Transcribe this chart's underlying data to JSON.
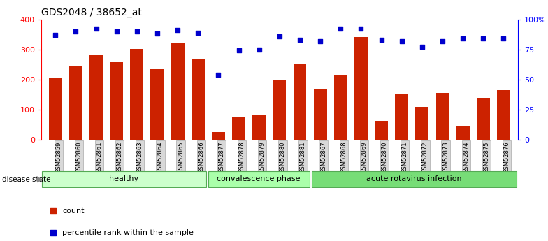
{
  "title": "GDS2048 / 38652_at",
  "samples": [
    "GSM52859",
    "GSM52860",
    "GSM52861",
    "GSM52862",
    "GSM52863",
    "GSM52864",
    "GSM52865",
    "GSM52866",
    "GSM52877",
    "GSM52878",
    "GSM52879",
    "GSM52880",
    "GSM52881",
    "GSM52867",
    "GSM52868",
    "GSM52869",
    "GSM52870",
    "GSM52871",
    "GSM52872",
    "GSM52873",
    "GSM52874",
    "GSM52875",
    "GSM52876"
  ],
  "counts": [
    205,
    247,
    280,
    257,
    302,
    235,
    322,
    270,
    25,
    75,
    83,
    200,
    250,
    170,
    215,
    340,
    62,
    150,
    110,
    155,
    45,
    140,
    165
  ],
  "percentiles": [
    87,
    90,
    92,
    90,
    90,
    88,
    91,
    89,
    54,
    74,
    75,
    86,
    83,
    82,
    92,
    92,
    83,
    82,
    77,
    82,
    84,
    84,
    84
  ],
  "group_boundaries": [
    0,
    8,
    13,
    23
  ],
  "group_labels": [
    "healthy",
    "convalescence phase",
    "acute rotavirus infection"
  ],
  "group_colors": [
    "#ccffcc",
    "#aaffaa",
    "#77dd77"
  ],
  "group_edge_color": "#55aa55",
  "bar_color": "#cc2200",
  "dot_color": "#0000cc",
  "ylim_left": [
    0,
    400
  ],
  "yticks_left": [
    0,
    100,
    200,
    300,
    400
  ],
  "ytick_labels_left": [
    "0",
    "100",
    "200",
    "300",
    "400"
  ],
  "yticks_right_pct": [
    0,
    25,
    50,
    75,
    100
  ],
  "ytick_labels_right": [
    "0",
    "25",
    "50",
    "75",
    "100%"
  ],
  "background_color": "#ffffff",
  "legend_count_label": "count",
  "legend_pct_label": "percentile rank within the sample",
  "disease_state_label": "disease state"
}
